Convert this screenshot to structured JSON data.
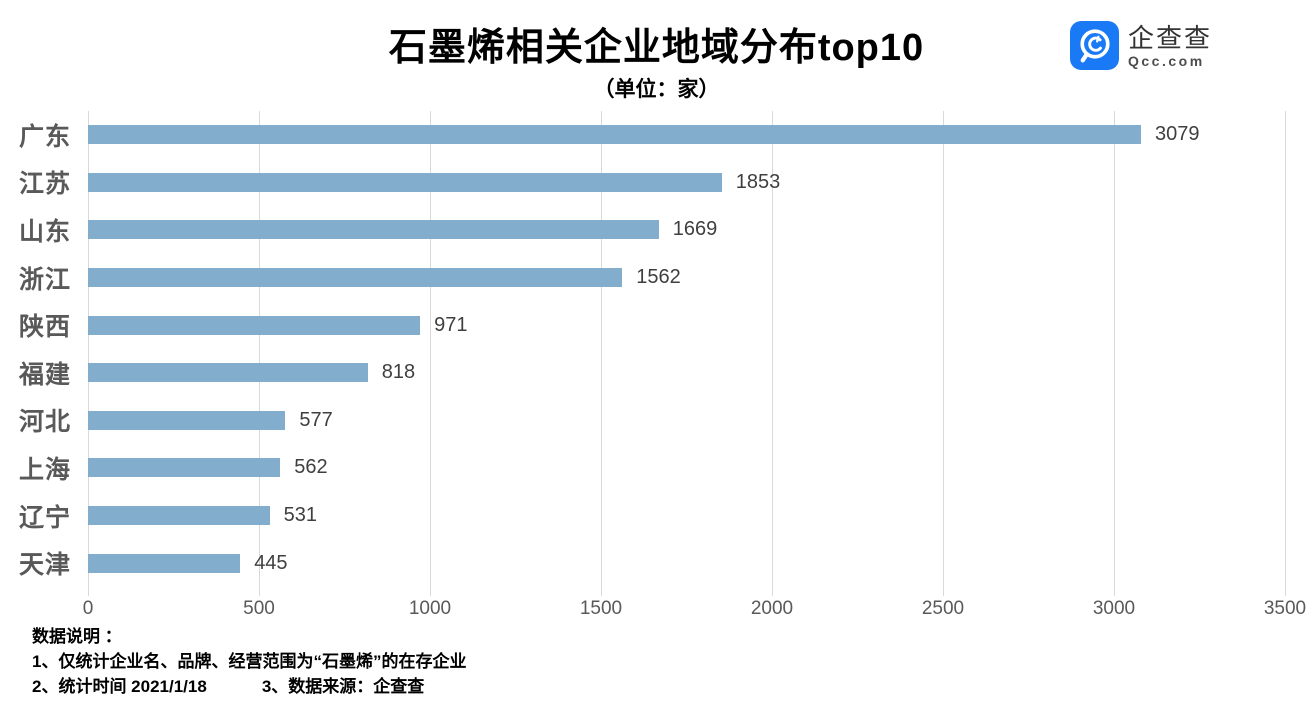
{
  "header": {
    "title": "石墨烯相关企业地域分布top10",
    "subtitle": "（单位：家）",
    "logo": {
      "brand": "企查查",
      "domain": "Qcc.com",
      "icon_color": "#1a7af6"
    }
  },
  "chart_data": {
    "type": "bar",
    "orientation": "horizontal",
    "title": "石墨烯相关企业地域分布top10",
    "subtitle": "（单位：家）",
    "unit": "家",
    "categories": [
      "广东",
      "江苏",
      "山东",
      "浙江",
      "陕西",
      "福建",
      "河北",
      "上海",
      "辽宁",
      "天津"
    ],
    "values": [
      3079,
      1853,
      1669,
      1562,
      971,
      818,
      577,
      562,
      531,
      445
    ],
    "xlabel": "",
    "ylabel": "",
    "xlim": [
      0,
      3500
    ],
    "x_ticks": [
      0,
      500,
      1000,
      1500,
      2000,
      2500,
      3000,
      3500
    ],
    "grid": "vertical",
    "gridline_color": "#d9d9d9",
    "bar_color": "#83adcd",
    "value_label_position": "end-of-bar",
    "legend": "none"
  },
  "footer": {
    "heading": "数据说明 ：",
    "note1": "1、仅统计企业名、品牌、经营范围为“石墨烯”的在存企业",
    "note2": "2、统计时间 2021/1/18",
    "note3": "3、数据来源：企查查"
  }
}
